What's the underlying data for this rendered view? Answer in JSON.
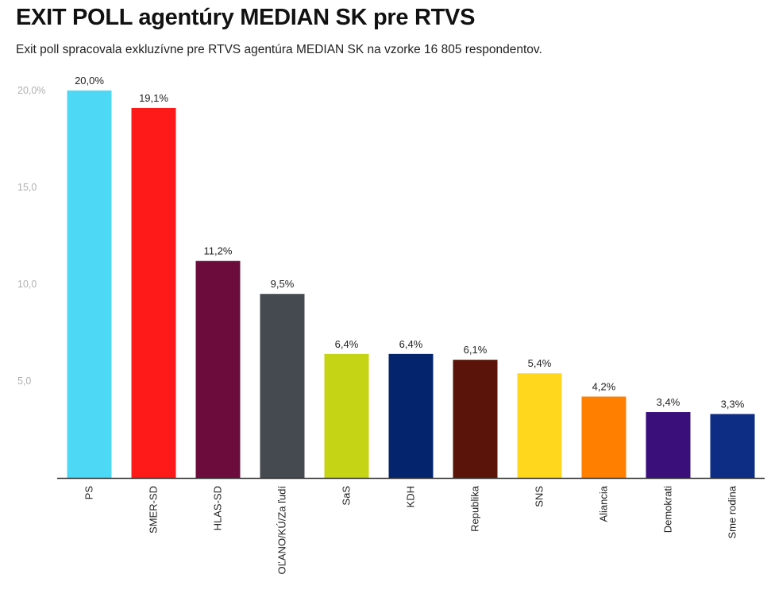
{
  "header": {
    "title": "EXIT POLL agentúry MEDIAN SK pre RTVS",
    "subtitle": "Exit poll spracovala exkluzívne pre RTVS agentúra MEDIAN SK na vzorke 16 805 respondentov."
  },
  "chart_data": {
    "type": "bar",
    "title": "EXIT POLL agentúry MEDIAN SK pre RTVS",
    "subtitle": "Exit poll spracovala exkluzívne pre RTVS agentúra MEDIAN SK na vzorke 16 805 respondentov.",
    "categories": [
      "PS",
      "SMER-SD",
      "HLAS-SD",
      "OĽANO/KÚ/Za ľudí",
      "SaS",
      "KDH",
      "Republika",
      "SNS",
      "Aliancia",
      "Demokrati",
      "Sme rodina"
    ],
    "values": [
      20.0,
      19.1,
      11.2,
      9.5,
      6.4,
      6.4,
      6.1,
      5.4,
      4.2,
      3.4,
      3.3
    ],
    "data_labels": [
      "20,0%",
      "19,1%",
      "11,2%",
      "9,5%",
      "6,4%",
      "6,4%",
      "6,1%",
      "5,4%",
      "4,2%",
      "3,4%",
      "3,3%"
    ],
    "colors": [
      "#4dd9f5",
      "#ff1a1a",
      "#6b0c3c",
      "#444a4f",
      "#c5d414",
      "#05246e",
      "#5a140a",
      "#ffd81e",
      "#ff7f00",
      "#3a0f7a",
      "#0d2c84"
    ],
    "ylim": [
      0,
      20
    ],
    "yticks": [
      5,
      10,
      15,
      20
    ],
    "ytick_labels": [
      "5,0",
      "10,0",
      "15,0",
      "20,0%"
    ],
    "xlabel": "",
    "ylabel": "",
    "grid": false,
    "legend": "none"
  }
}
